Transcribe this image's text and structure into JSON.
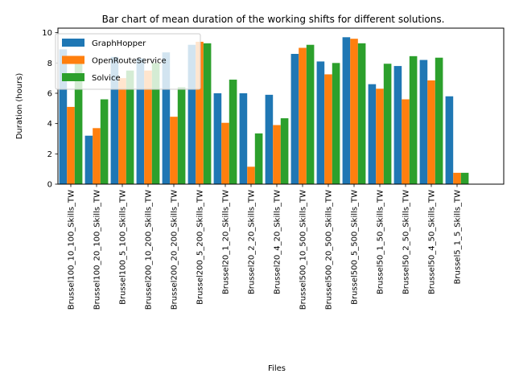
{
  "chart_data": {
    "type": "bar",
    "title": "Bar chart of mean duration of the working shifts for different solutions.",
    "xlabel": "Files",
    "ylabel": "Duration (hours)",
    "ylim": [
      0,
      10.3
    ],
    "yticks": [
      0,
      2,
      4,
      6,
      8,
      10
    ],
    "grid": false,
    "legend_position": "top-left",
    "categories": [
      "Brussel100_10_100_Skills_TW",
      "Brussel100_20_100_Skills_TW",
      "Brussel100_5_100_Skills_TW",
      "Brussel200_10_200_Skills_TW",
      "Brussel200_20_200_Skills_TW",
      "Brussel200_5_200_Skills_TW",
      "Brussel20_1_20_Skills_TW",
      "Brussel20_2_20_Skills_TW",
      "Brussel20_4_20_Skills_TW",
      "Brussel500_10_500_Skills_TW",
      "Brussel500_20_500_Skills_TW",
      "Brussel500_5_500_Skills_TW",
      "Brussel50_1_50_Skills_TW",
      "Brussel50_2_50_Skills_TW",
      "Brussel50_4_50_Skills_TW",
      "Brussel5_1_5_Skills_TW"
    ],
    "series": [
      {
        "name": "GraphHopper",
        "color": "#1f77b4",
        "values": [
          8.9,
          3.2,
          8.4,
          8.3,
          8.7,
          9.2,
          6.0,
          6.0,
          5.9,
          8.6,
          8.1,
          9.7,
          6.6,
          7.8,
          8.2,
          5.8
        ]
      },
      {
        "name": "OpenRouteService",
        "color": "#ff7f0e",
        "values": [
          5.1,
          3.7,
          7.0,
          7.5,
          4.45,
          9.4,
          4.05,
          1.15,
          3.9,
          9.0,
          7.25,
          9.6,
          6.3,
          5.6,
          6.85,
          0.75
        ]
      },
      {
        "name": "Solvice",
        "color": "#2ca02c",
        "values": [
          8.0,
          5.6,
          7.5,
          8.0,
          6.4,
          9.3,
          6.9,
          3.35,
          4.35,
          9.2,
          8.0,
          9.3,
          7.95,
          8.45,
          8.35,
          0.75
        ]
      }
    ]
  }
}
